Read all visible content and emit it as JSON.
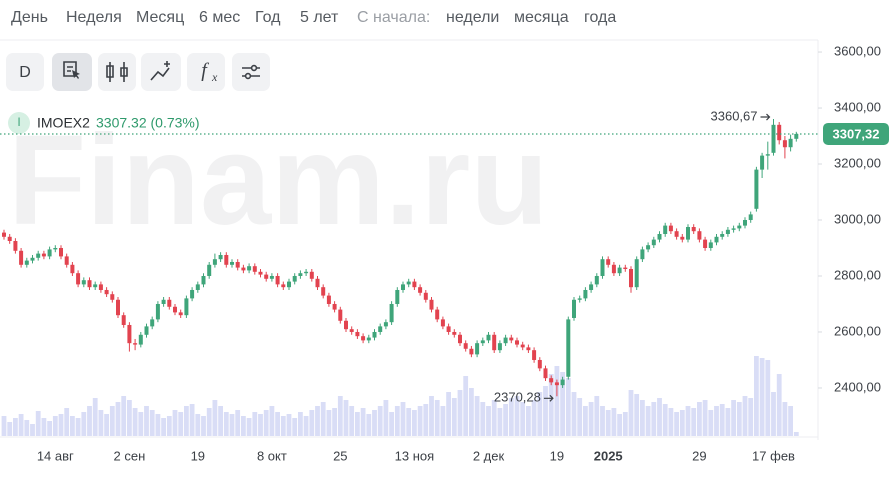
{
  "toolbar": {
    "periods": [
      "День",
      "Неделя",
      "Месяц",
      "6 мес",
      "Год",
      "5 лет"
    ],
    "since_label": "С начала:",
    "since": [
      "недели",
      "месяца",
      "года"
    ],
    "button_d": "D",
    "function_label": "f",
    "function_sub": "x"
  },
  "legend": {
    "badge": "I",
    "ticker": "IMOEX2",
    "last": "3307.32 (0.73%)"
  },
  "watermark": "Finam.ru",
  "chart_data": {
    "type": "candlestick",
    "categories": [
      null,
      null,
      null,
      null,
      null,
      null,
      null,
      null,
      null,
      "14 авг",
      null,
      null,
      null,
      null,
      null,
      null,
      null,
      null,
      null,
      null,
      null,
      null,
      "2 сен",
      null,
      null,
      null,
      null,
      null,
      null,
      null,
      null,
      null,
      null,
      null,
      "19",
      null,
      null,
      null,
      null,
      null,
      null,
      null,
      null,
      null,
      null,
      null,
      null,
      "8 окт",
      null,
      null,
      null,
      null,
      null,
      null,
      null,
      null,
      null,
      null,
      null,
      "25",
      null,
      null,
      null,
      null,
      null,
      null,
      null,
      null,
      null,
      null,
      null,
      null,
      "13 ноя",
      null,
      null,
      null,
      null,
      null,
      null,
      null,
      null,
      null,
      null,
      null,
      null,
      "2 дек",
      null,
      null,
      null,
      null,
      null,
      null,
      null,
      null,
      null,
      null,
      null,
      "19",
      null,
      null,
      null,
      null,
      null,
      null,
      null,
      null,
      "2025",
      null,
      null,
      null,
      null,
      null,
      null,
      null,
      null,
      null,
      null,
      null,
      null,
      null,
      null,
      null,
      "29",
      null,
      null,
      null,
      null,
      null,
      null,
      null,
      null,
      null,
      null,
      null,
      null,
      "17 фев",
      null,
      null,
      null,
      null
    ],
    "open": [
      2955,
      2940,
      2925,
      2890,
      2840,
      2855,
      2865,
      2880,
      2870,
      2895,
      2900,
      2870,
      2840,
      2810,
      2770,
      2785,
      2760,
      2770,
      2750,
      2735,
      2715,
      2660,
      2625,
      2560,
      2555,
      2590,
      2620,
      2645,
      2700,
      2715,
      2690,
      2670,
      2660,
      2720,
      2750,
      2770,
      2800,
      2840,
      2860,
      2875,
      2840,
      2850,
      2830,
      2820,
      2835,
      2815,
      2805,
      2790,
      2800,
      2770,
      2760,
      2780,
      2800,
      2810,
      2815,
      2790,
      2760,
      2730,
      2700,
      2680,
      2640,
      2610,
      2600,
      2585,
      2570,
      2580,
      2600,
      2620,
      2635,
      2700,
      2750,
      2770,
      2780,
      2760,
      2740,
      2715,
      2680,
      2645,
      2620,
      2600,
      2590,
      2560,
      2540,
      2520,
      2560,
      2570,
      2590,
      2535,
      2560,
      2580,
      2570,
      2555,
      2545,
      2535,
      2500,
      2470,
      2435,
      2420,
      2410,
      2440,
      2650,
      2715,
      2720,
      2750,
      2770,
      2800,
      2860,
      2840,
      2810,
      2830,
      2825,
      2760,
      2860,
      2895,
      2910,
      2930,
      2950,
      2980,
      2960,
      2940,
      2930,
      2975,
      2960,
      2930,
      2900,
      2920,
      2940,
      2950,
      2965,
      2970,
      2980,
      3000,
      3040,
      3180,
      3230,
      3240,
      3340,
      3285,
      3260,
      3290
    ],
    "high": [
      2965,
      2950,
      2935,
      2900,
      2865,
      2875,
      2890,
      2890,
      2905,
      2910,
      2910,
      2880,
      2850,
      2820,
      2795,
      2795,
      2780,
      2780,
      2760,
      2745,
      2725,
      2670,
      2635,
      2575,
      2600,
      2630,
      2655,
      2710,
      2725,
      2725,
      2700,
      2680,
      2730,
      2760,
      2780,
      2810,
      2850,
      2880,
      2885,
      2885,
      2860,
      2860,
      2840,
      2845,
      2845,
      2825,
      2815,
      2810,
      2810,
      2780,
      2790,
      2810,
      2820,
      2825,
      2825,
      2800,
      2770,
      2740,
      2710,
      2690,
      2650,
      2620,
      2610,
      2595,
      2590,
      2610,
      2630,
      2645,
      2710,
      2760,
      2780,
      2790,
      2790,
      2770,
      2750,
      2725,
      2690,
      2655,
      2630,
      2610,
      2600,
      2570,
      2550,
      2570,
      2580,
      2600,
      2600,
      2570,
      2590,
      2590,
      2580,
      2565,
      2555,
      2545,
      2510,
      2480,
      2445,
      2430,
      2440,
      2655,
      2725,
      2730,
      2760,
      2780,
      2810,
      2870,
      2870,
      2850,
      2840,
      2840,
      2835,
      2870,
      2905,
      2920,
      2940,
      2960,
      2990,
      2990,
      2970,
      2950,
      2985,
      2985,
      2970,
      2940,
      2930,
      2950,
      2960,
      2975,
      2980,
      2990,
      3010,
      3030,
      3190,
      3240,
      3280,
      3360.67,
      3350,
      3300,
      3305,
      3315
    ],
    "low": [
      2930,
      2915,
      2880,
      2830,
      2830,
      2845,
      2855,
      2860,
      2860,
      2885,
      2860,
      2830,
      2800,
      2760,
      2760,
      2750,
      2750,
      2740,
      2725,
      2705,
      2650,
      2615,
      2530,
      2535,
      2545,
      2580,
      2610,
      2635,
      2690,
      2680,
      2660,
      2650,
      2650,
      2710,
      2740,
      2760,
      2790,
      2830,
      2850,
      2830,
      2830,
      2820,
      2810,
      2810,
      2805,
      2795,
      2780,
      2780,
      2760,
      2750,
      2750,
      2770,
      2790,
      2800,
      2780,
      2750,
      2720,
      2690,
      2670,
      2630,
      2600,
      2590,
      2575,
      2560,
      2560,
      2570,
      2590,
      2610,
      2625,
      2690,
      2740,
      2760,
      2750,
      2730,
      2705,
      2670,
      2635,
      2610,
      2590,
      2580,
      2550,
      2530,
      2510,
      2510,
      2550,
      2560,
      2525,
      2525,
      2550,
      2560,
      2545,
      2535,
      2525,
      2490,
      2460,
      2425,
      2410,
      2370.28,
      2400,
      2430,
      2640,
      2705,
      2710,
      2740,
      2760,
      2790,
      2830,
      2800,
      2800,
      2815,
      2740,
      2750,
      2850,
      2885,
      2900,
      2920,
      2940,
      2950,
      2930,
      2920,
      2920,
      2950,
      2920,
      2890,
      2890,
      2910,
      2930,
      2940,
      2955,
      2960,
      2970,
      2990,
      3030,
      3150,
      3180,
      3230,
      3270,
      3220,
      3245,
      3280
    ],
    "close": [
      2940,
      2925,
      2890,
      2840,
      2855,
      2865,
      2880,
      2870,
      2895,
      2900,
      2870,
      2840,
      2810,
      2770,
      2785,
      2760,
      2770,
      2750,
      2735,
      2715,
      2660,
      2625,
      2560,
      2555,
      2590,
      2620,
      2645,
      2700,
      2715,
      2690,
      2670,
      2660,
      2720,
      2750,
      2770,
      2800,
      2840,
      2860,
      2875,
      2840,
      2850,
      2830,
      2820,
      2835,
      2815,
      2805,
      2790,
      2800,
      2770,
      2760,
      2780,
      2800,
      2810,
      2815,
      2790,
      2760,
      2730,
      2700,
      2680,
      2640,
      2610,
      2600,
      2585,
      2570,
      2580,
      2600,
      2620,
      2635,
      2700,
      2750,
      2770,
      2780,
      2760,
      2740,
      2715,
      2680,
      2645,
      2620,
      2600,
      2590,
      2560,
      2540,
      2520,
      2560,
      2570,
      2590,
      2535,
      2560,
      2580,
      2570,
      2555,
      2545,
      2535,
      2500,
      2470,
      2435,
      2420,
      2410,
      2430,
      2645,
      2715,
      2720,
      2750,
      2770,
      2800,
      2860,
      2840,
      2810,
      2830,
      2825,
      2760,
      2860,
      2895,
      2910,
      2930,
      2950,
      2980,
      2960,
      2940,
      2930,
      2975,
      2960,
      2930,
      2900,
      2920,
      2940,
      2950,
      2965,
      2970,
      2980,
      3000,
      3020,
      3180,
      3230,
      3235,
      3340,
      3285,
      3260,
      3290,
      3307.32
    ],
    "volume": [
      20,
      14,
      18,
      22,
      16,
      12,
      25,
      18,
      15,
      20,
      22,
      28,
      20,
      18,
      24,
      30,
      38,
      26,
      22,
      30,
      34,
      40,
      36,
      28,
      24,
      30,
      26,
      22,
      18,
      20,
      26,
      24,
      30,
      32,
      22,
      20,
      28,
      36,
      30,
      24,
      22,
      26,
      20,
      18,
      24,
      22,
      26,
      30,
      24,
      20,
      22,
      18,
      24,
      20,
      26,
      30,
      34,
      26,
      28,
      40,
      36,
      30,
      24,
      28,
      22,
      26,
      30,
      36,
      24,
      30,
      34,
      28,
      26,
      30,
      32,
      40,
      36,
      30,
      44,
      38,
      46,
      60,
      48,
      40,
      34,
      30,
      36,
      28,
      32,
      38,
      40,
      34,
      30,
      36,
      44,
      50,
      62,
      70,
      64,
      58,
      44,
      38,
      30,
      34,
      40,
      30,
      26,
      28,
      22,
      24,
      46,
      42,
      36,
      30,
      34,
      38,
      32,
      28,
      24,
      26,
      30,
      28,
      34,
      36,
      26,
      30,
      32,
      28,
      36,
      34,
      40,
      38,
      80,
      78,
      76,
      44,
      62,
      34,
      30,
      4
    ],
    "up_color": "#3fa57a",
    "down_color": "#e2434f",
    "volume_color": "#d9ddf6",
    "ylim": [
      2232,
      3643
    ],
    "yticks": [
      {
        "value": 2400,
        "label": "2400,00"
      },
      {
        "value": 2600,
        "label": "2600,00"
      },
      {
        "value": 2800,
        "label": "2800,00"
      },
      {
        "value": 3000,
        "label": "3000,00"
      },
      {
        "value": 3200,
        "label": "3200,00"
      },
      {
        "value": 3400,
        "label": "3400,00"
      },
      {
        "value": 3600,
        "label": "3600,00"
      }
    ],
    "annotations": [
      {
        "value": 3360.67,
        "label": "3360,67"
      },
      {
        "value": 2370.28,
        "label": "2370,28"
      }
    ],
    "last_price": {
      "value": 3307.32,
      "label": "3307,32"
    }
  }
}
